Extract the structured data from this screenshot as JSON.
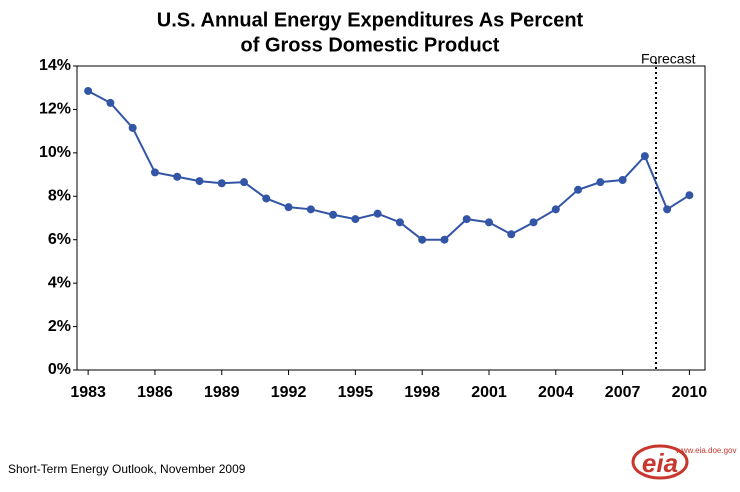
{
  "chart_data": {
    "type": "line",
    "title": [
      "U.S. Annual Energy Expenditures As Percent",
      "of Gross Domestic Product"
    ],
    "x": [
      1983,
      1984,
      1985,
      1986,
      1987,
      1988,
      1989,
      1990,
      1991,
      1992,
      1993,
      1994,
      1995,
      1996,
      1997,
      1998,
      1999,
      2000,
      2001,
      2002,
      2003,
      2004,
      2005,
      2006,
      2007,
      2008,
      2009,
      2010
    ],
    "series": [
      {
        "color": "#3355a5",
        "values": [
          12.85,
          12.3,
          11.15,
          9.1,
          8.9,
          8.7,
          8.6,
          8.65,
          7.9,
          7.5,
          7.4,
          7.15,
          6.95,
          7.2,
          6.8,
          6.0,
          6.0,
          6.95,
          6.8,
          6.25,
          6.8,
          7.4,
          8.3,
          8.65,
          8.75,
          9.85,
          7.4,
          8.05
        ]
      }
    ],
    "xlim": [
      1982.5,
      2010.7
    ],
    "xticks": [
      1983,
      1986,
      1989,
      1992,
      1995,
      1998,
      2001,
      2004,
      2007,
      2010
    ],
    "ylim": [
      0,
      14
    ],
    "yticks": [
      {
        "value": 0,
        "label": "0%"
      },
      {
        "value": 2,
        "label": "2%"
      },
      {
        "value": 4,
        "label": "4%"
      },
      {
        "value": 6,
        "label": "6%"
      },
      {
        "value": 8,
        "label": "8%"
      },
      {
        "value": 10,
        "label": "10%"
      },
      {
        "value": 12,
        "label": "12%"
      },
      {
        "value": 14,
        "label": "14%"
      }
    ],
    "forecast_x": 2008.5,
    "forecast_label": "Forecast",
    "source": "Short-Term Energy Outlook, November 2009",
    "logo_url": "www.eia.doe.gov",
    "logo_text": "eia"
  }
}
